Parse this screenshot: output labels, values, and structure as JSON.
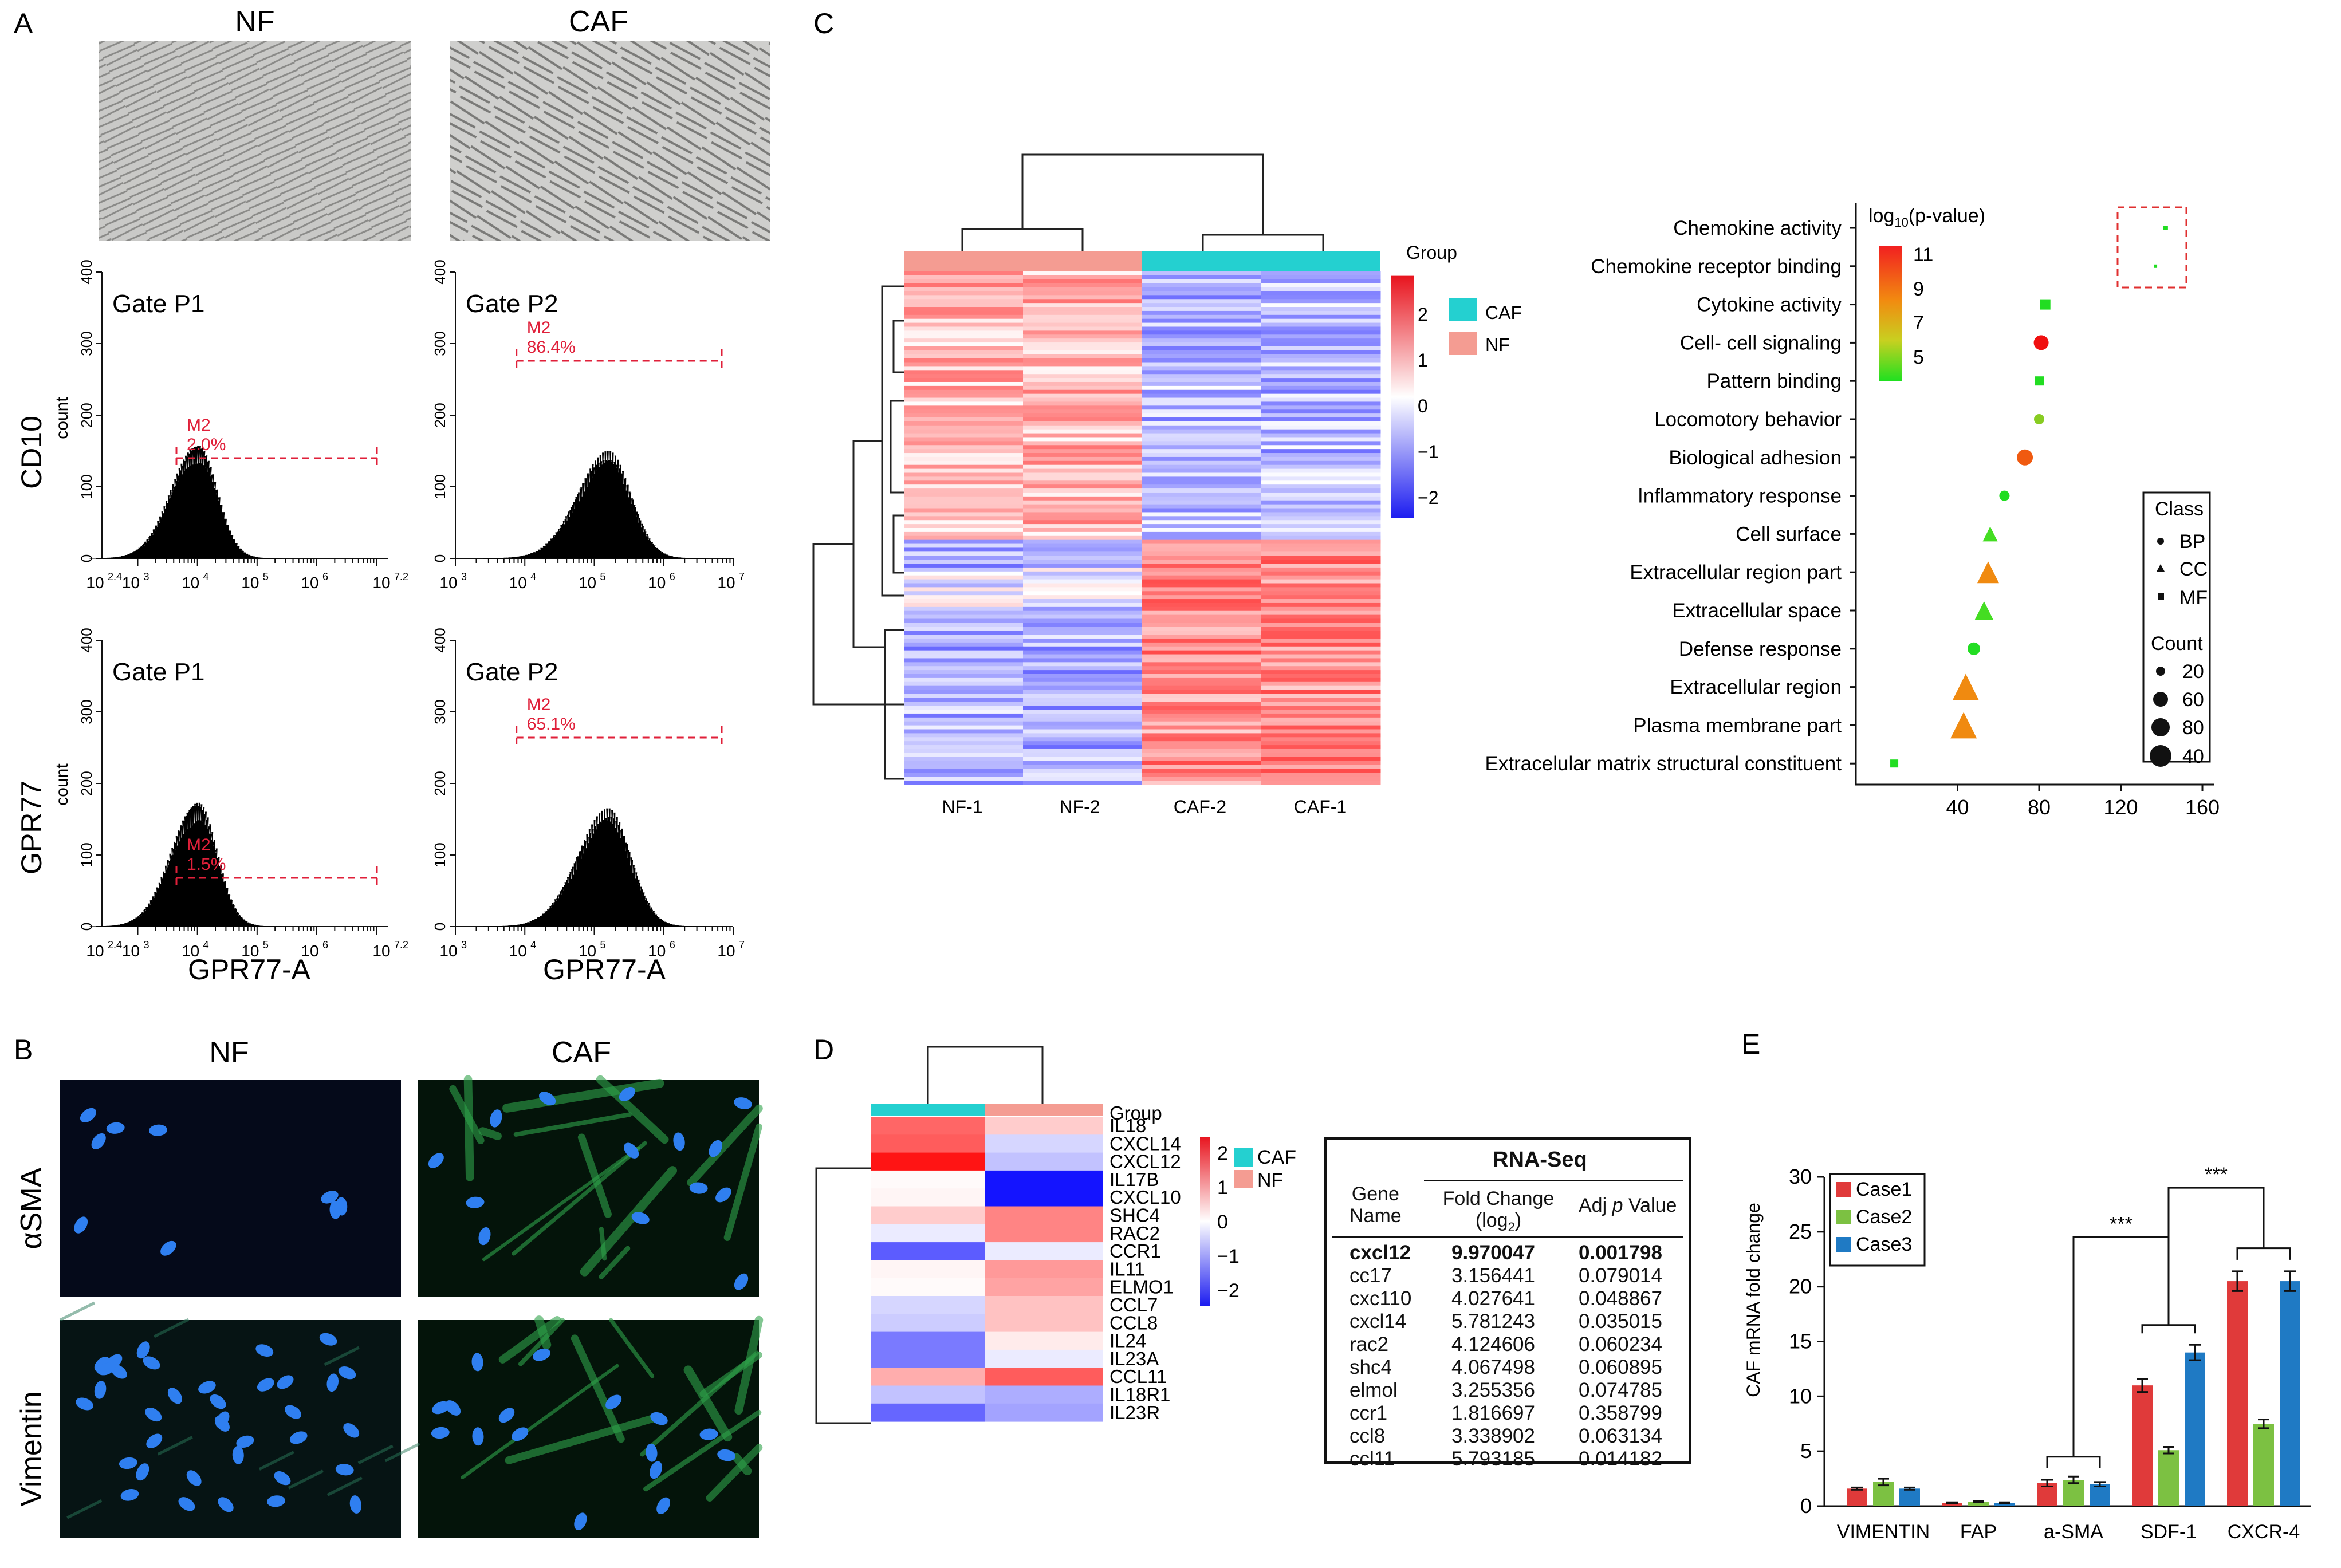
{
  "panel_labels": {
    "a": "A",
    "b": "B",
    "c": "C",
    "d": "D",
    "e": "E"
  },
  "panel_a": {
    "col_nf": "NF",
    "col_caf": "CAF",
    "row_cd10": "CD10",
    "row_gpr77": "GPR77",
    "y_axis_label": "count",
    "x_axis_label": "GPR77-A",
    "y_ticks": [
      "0",
      "100",
      "200",
      "300",
      "400"
    ],
    "x_ticks_left": [
      "10",
      "2.4",
      "10",
      "3",
      "10",
      "4",
      "10",
      "5",
      "10",
      "6",
      "10",
      "7.2"
    ],
    "x_ticks_right": [
      "10",
      "3",
      "10",
      "4",
      "10",
      "5",
      "10",
      "6",
      "10",
      "7"
    ],
    "histograms": [
      {
        "gate": "Gate P1",
        "marker": "M2",
        "percent": "2.0%",
        "peak_log": 4.0,
        "peak_count": 160
      },
      {
        "gate": "Gate P2",
        "marker": "M2",
        "percent": "86.4%",
        "peak_log": 5.2,
        "peak_count": 150
      },
      {
        "gate": "Gate P1",
        "marker": "M2",
        "percent": "1.5%",
        "peak_log": 4.0,
        "peak_count": 175
      },
      {
        "gate": "Gate P2",
        "marker": "M2",
        "percent": "65.1%",
        "peak_log": 5.2,
        "peak_count": 165
      }
    ]
  },
  "panel_b": {
    "col_nf": "NF",
    "col_caf": "CAF",
    "row_asma": "αSMA",
    "row_vimentin": "Vimentin"
  },
  "panel_c": {
    "heatmap_columns": [
      "NF-1",
      "NF-2",
      "CAF-2",
      "CAF-1"
    ],
    "group_label": "Group",
    "legend_groups": [
      {
        "name": "CAF",
        "color": "#24d0d0"
      },
      {
        "name": "NF",
        "color": "#f49c92"
      }
    ],
    "colorbar_ticks": [
      "2",
      "1",
      "0",
      "−1",
      "−2"
    ],
    "dot_plot": {
      "title": "log10(p-value)",
      "title_base": "log",
      "title_sub": "10",
      "title_rest": "(p-value)",
      "colorbar_ticks": [
        "11",
        "9",
        "7",
        "5"
      ],
      "class_title": "Class",
      "classes": [
        "BP",
        "CC",
        "MF"
      ],
      "count_title": "Count",
      "counts": [
        "20",
        "60",
        "80",
        "40"
      ],
      "x_ticks": [
        "40",
        "80",
        "120",
        "160"
      ],
      "terms": [
        {
          "name": "Chemokine activity",
          "x": 142,
          "shape": "square",
          "color": "#22dd22",
          "size": 8
        },
        {
          "name": "Chemokine receptor binding",
          "x": 137,
          "shape": "square",
          "color": "#22dd22",
          "size": 6
        },
        {
          "name": "Cytokine activity",
          "x": 83,
          "shape": "square",
          "color": "#22dd22",
          "size": 18
        },
        {
          "name": "Cell- cell signaling",
          "x": 81,
          "shape": "circle",
          "color": "#f01010",
          "size": 26
        },
        {
          "name": "Pattern binding",
          "x": 80,
          "shape": "square",
          "color": "#22dd22",
          "size": 16
        },
        {
          "name": "Locomotory behavior",
          "x": 80,
          "shape": "circle",
          "color": "#88cc22",
          "size": 18
        },
        {
          "name": "Biological adhesion",
          "x": 73,
          "shape": "circle",
          "color": "#f05a10",
          "size": 28
        },
        {
          "name": "Inflammatory response",
          "x": 63,
          "shape": "circle",
          "color": "#22dd22",
          "size": 18
        },
        {
          "name": "Cell surface",
          "x": 56,
          "shape": "triangle",
          "color": "#44dd22",
          "size": 26
        },
        {
          "name": "Extracellular region part",
          "x": 55,
          "shape": "triangle",
          "color": "#f08a10",
          "size": 38
        },
        {
          "name": "Extracellular space",
          "x": 53,
          "shape": "triangle",
          "color": "#44dd22",
          "size": 32
        },
        {
          "name": "Defense response",
          "x": 48,
          "shape": "circle",
          "color": "#22dd22",
          "size": 22
        },
        {
          "name": "Extracellular region",
          "x": 44,
          "shape": "triangle",
          "color": "#f08a10",
          "size": 46
        },
        {
          "name": "Plasma membrane part",
          "x": 43,
          "shape": "triangle",
          "color": "#f08a10",
          "size": 46
        },
        {
          "name": "Extracelular matrix structural constituent",
          "x": 9,
          "shape": "square",
          "color": "#22dd22",
          "size": 14
        }
      ]
    }
  },
  "panel_d": {
    "group_label": "Group",
    "genes": [
      "IL18",
      "CXCL14",
      "CXCL12",
      "IL17B",
      "CXCL10",
      "SHC4",
      "RAC2",
      "CCR1",
      "IL11",
      "ELMO1",
      "CCL7",
      "CCL8",
      "IL24",
      "IL23A",
      "CCL11",
      "IL18R1",
      "IL23R"
    ],
    "legend_groups": [
      {
        "name": "CAF",
        "color": "#24d0d0"
      },
      {
        "name": "NF",
        "color": "#f49c92"
      }
    ],
    "colorbar_ticks": [
      "2",
      "1",
      "0",
      "−1",
      "−2"
    ],
    "table": {
      "header": "RNA-Seq",
      "col1a": "Gene",
      "col1b": "Name",
      "col2a": "Fold Change",
      "col2b": "(log",
      "col2c": "2",
      "col2d": ")",
      "col3a": "Adj ",
      "col3b": "p",
      "col3c": " Value",
      "rows": [
        {
          "gene": "cxcl12",
          "fc": "9.970047",
          "p": "0.001798"
        },
        {
          "gene": "cc17",
          "fc": "3.156441",
          "p": "0.079014"
        },
        {
          "gene": "cxc110",
          "fc": "4.027641",
          "p": "0.048867"
        },
        {
          "gene": "cxcl14",
          "fc": "5.781243",
          "p": "0.035015"
        },
        {
          "gene": "rac2",
          "fc": "4.124606",
          "p": "0.060234"
        },
        {
          "gene": "shc4",
          "fc": "4.067498",
          "p": "0.060895"
        },
        {
          "gene": "elmol",
          "fc": "3.255356",
          "p": "0.074785"
        },
        {
          "gene": "ccr1",
          "fc": "1.816697",
          "p": "0.358799"
        },
        {
          "gene": "ccl8",
          "fc": "3.338902",
          "p": "0.063134"
        },
        {
          "gene": "ccl11",
          "fc": "5.793185",
          "p": "0.014182"
        }
      ]
    }
  },
  "chart_data": {
    "type": "bar",
    "title": "",
    "ylabel": "CAF mRNA fold change",
    "xlabel": "",
    "ylim": [
      0,
      30
    ],
    "y_ticks": [
      "0",
      "5",
      "10",
      "15",
      "20",
      "25",
      "30"
    ],
    "categories": [
      "VIMENTIN",
      "FAP",
      "a-SMA",
      "SDF-1",
      "CXCR-4"
    ],
    "series": [
      {
        "name": "Case1",
        "color": "#e03a3a",
        "values": [
          1.6,
          0.3,
          2.1,
          11.0,
          20.5
        ],
        "errors": [
          0.1,
          0.05,
          0.3,
          0.6,
          0.9
        ]
      },
      {
        "name": "Case2",
        "color": "#7cc142",
        "values": [
          2.2,
          0.4,
          2.4,
          5.1,
          7.5
        ],
        "errors": [
          0.3,
          0.05,
          0.3,
          0.3,
          0.4
        ]
      },
      {
        "name": "Case3",
        "color": "#1f7ac4",
        "values": [
          1.6,
          0.3,
          2.0,
          14.0,
          20.5
        ],
        "errors": [
          0.1,
          0.05,
          0.2,
          0.7,
          0.9
        ]
      }
    ],
    "significance": [
      "***",
      "***"
    ]
  }
}
